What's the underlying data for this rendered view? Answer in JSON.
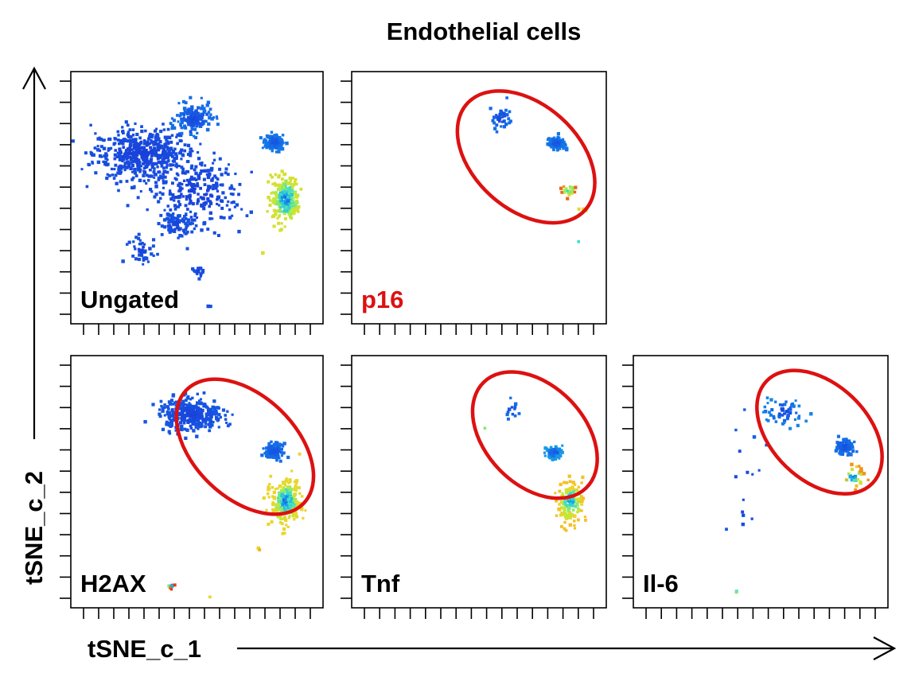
{
  "chart_data": {
    "type": "scatter",
    "title": "Endothelial cells",
    "xlabel": "tSNE_c_1",
    "ylabel": "tSNE_c_2",
    "xlim": [
      0,
      16
    ],
    "ylim": [
      0,
      16
    ],
    "colors": {
      "gate": "#dd1111",
      "label_default": "#000000",
      "label_highlight": "#dd1111",
      "colormap": [
        "#1a3dd8",
        "#1560e6",
        "#16a7e8",
        "#3fe0c8",
        "#b6ee3a",
        "#f6d02a",
        "#e23a1a"
      ]
    },
    "panels": [
      {
        "label": "Ungated",
        "label_color": "#000000",
        "gate": null,
        "clusters": [
          {
            "cx": 4.2,
            "cy": 11.0,
            "rx": 3.0,
            "ry": 1.6,
            "n": 520,
            "c": [
              0.0,
              0.08
            ]
          },
          {
            "cx": 8.0,
            "cy": 8.3,
            "rx": 2.6,
            "ry": 2.2,
            "n": 260,
            "c": [
              0.0,
              0.08
            ]
          },
          {
            "cx": 7.8,
            "cy": 13.4,
            "rx": 1.1,
            "ry": 0.9,
            "n": 150,
            "c": [
              0.0,
              0.2
            ]
          },
          {
            "cx": 13.3,
            "cy": 11.8,
            "rx": 0.55,
            "ry": 0.45,
            "n": 140,
            "c": [
              0.05,
              0.22
            ]
          },
          {
            "cx": 14.1,
            "cy": 7.9,
            "rx": 0.9,
            "ry": 1.4,
            "n": 260,
            "c": [
              0.1,
              0.75
            ]
          },
          {
            "cx": 6.6,
            "cy": 6.1,
            "rx": 0.9,
            "ry": 0.7,
            "n": 70,
            "c": [
              0.0,
              0.1
            ]
          },
          {
            "cx": 4.2,
            "cy": 4.4,
            "rx": 1.1,
            "ry": 0.7,
            "n": 40,
            "c": [
              0.0,
              0.1
            ]
          },
          {
            "cx": 8.2,
            "cy": 2.9,
            "rx": 0.3,
            "ry": 0.5,
            "n": 18,
            "c": [
              0.0,
              0.1
            ]
          },
          {
            "cx": 8.8,
            "cy": 0.5,
            "rx": 0.1,
            "ry": 0.1,
            "n": 2,
            "c": [
              0.0,
              0.1
            ]
          },
          {
            "cx": 12.5,
            "cy": 4.2,
            "rx": 0.1,
            "ry": 0.1,
            "n": 2,
            "c": [
              0.6,
              0.9
            ]
          }
        ]
      },
      {
        "label": "p16",
        "label_color": "#dd1111",
        "gate": {
          "cx": 11.2,
          "cy": 10.8,
          "rx": 5.4,
          "ry": 3.6,
          "angle": 42
        },
        "clusters": [
          {
            "cx": 9.5,
            "cy": 13.4,
            "rx": 0.6,
            "ry": 0.8,
            "n": 35,
            "c": [
              0.0,
              0.2
            ]
          },
          {
            "cx": 13.3,
            "cy": 11.7,
            "rx": 0.5,
            "ry": 0.35,
            "n": 110,
            "c": [
              0.05,
              0.22
            ]
          },
          {
            "cx": 14.1,
            "cy": 8.5,
            "rx": 0.5,
            "ry": 0.5,
            "n": 22,
            "c": [
              0.2,
              0.95
            ]
          },
          {
            "cx": 15.3,
            "cy": 7.2,
            "rx": 0.3,
            "ry": 0.1,
            "n": 4,
            "c": [
              0.6,
              0.8
            ]
          },
          {
            "cx": 14.8,
            "cy": 5.0,
            "rx": 0.05,
            "ry": 0.05,
            "n": 1,
            "c": [
              0.5,
              0.5
            ]
          }
        ]
      },
      {
        "label": "H2AX",
        "label_color": "#000000",
        "gate": {
          "cx": 11.3,
          "cy": 10.4,
          "rx": 5.6,
          "ry": 3.5,
          "angle": 44
        },
        "clusters": [
          {
            "cx": 7.6,
            "cy": 12.6,
            "rx": 2.0,
            "ry": 1.0,
            "n": 320,
            "c": [
              0.0,
              0.12
            ]
          },
          {
            "cx": 13.3,
            "cy": 10.1,
            "rx": 0.55,
            "ry": 0.45,
            "n": 140,
            "c": [
              0.05,
              0.2
            ]
          },
          {
            "cx": 14.1,
            "cy": 6.6,
            "rx": 0.9,
            "ry": 1.4,
            "n": 260,
            "c": [
              0.1,
              0.8
            ]
          },
          {
            "cx": 6.2,
            "cy": 0.8,
            "rx": 0.3,
            "ry": 0.15,
            "n": 8,
            "c": [
              0.0,
              1.0
            ]
          },
          {
            "cx": 8.9,
            "cy": 0.1,
            "rx": 0.05,
            "ry": 0.05,
            "n": 1,
            "c": [
              0.8,
              0.8
            ]
          },
          {
            "cx": 12.3,
            "cy": 3.5,
            "rx": 0.2,
            "ry": 0.2,
            "n": 2,
            "c": [
              0.7,
              0.9
            ]
          }
        ]
      },
      {
        "label": "Tnf",
        "label_color": "#000000",
        "gate": {
          "cx": 11.8,
          "cy": 11.2,
          "rx": 5.0,
          "ry": 3.4,
          "angle": 46
        },
        "clusters": [
          {
            "cx": 10.2,
            "cy": 12.9,
            "rx": 0.4,
            "ry": 0.6,
            "n": 12,
            "c": [
              0.0,
              0.2
            ]
          },
          {
            "cx": 13.1,
            "cy": 10.0,
            "rx": 0.5,
            "ry": 0.4,
            "n": 65,
            "c": [
              0.05,
              0.3
            ]
          },
          {
            "cx": 14.2,
            "cy": 6.6,
            "rx": 0.8,
            "ry": 1.3,
            "n": 140,
            "c": [
              0.15,
              0.85
            ]
          },
          {
            "cx": 8.4,
            "cy": 11.7,
            "rx": 0.1,
            "ry": 0.1,
            "n": 1,
            "c": [
              0.6,
              0.6
            ]
          }
        ]
      },
      {
        "label": "Il-6",
        "label_color": "#000000",
        "gate": {
          "cx": 12.0,
          "cy": 11.4,
          "rx": 5.0,
          "ry": 3.3,
          "angle": 44
        },
        "clusters": [
          {
            "cx": 9.6,
            "cy": 12.8,
            "rx": 1.4,
            "ry": 0.9,
            "n": 60,
            "c": [
              0.0,
              0.25
            ]
          },
          {
            "cx": 13.7,
            "cy": 10.4,
            "rx": 0.5,
            "ry": 0.45,
            "n": 120,
            "c": [
              0.05,
              0.2
            ]
          },
          {
            "cx": 14.3,
            "cy": 8.3,
            "rx": 0.7,
            "ry": 0.8,
            "n": 30,
            "c": [
              0.1,
              0.9
            ]
          },
          {
            "cx": 6.8,
            "cy": 7.2,
            "rx": 1.8,
            "ry": 5.0,
            "n": 16,
            "c": [
              0.0,
              0.15
            ]
          },
          {
            "cx": 6.4,
            "cy": 0.5,
            "rx": 0.1,
            "ry": 0.1,
            "n": 2,
            "c": [
              0.3,
              0.6
            ]
          }
        ]
      }
    ]
  }
}
